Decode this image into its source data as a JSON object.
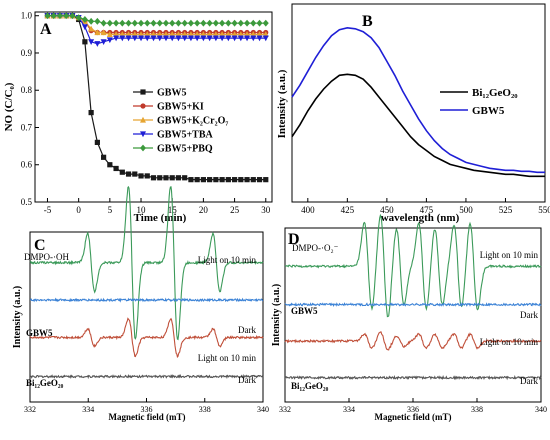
{
  "chart_data": [
    {
      "type": "line",
      "panel_label": "A",
      "title": "",
      "xlabel": "Time (min)",
      "ylabel": "NO (C/C₀)",
      "xlim": [
        -7,
        31
      ],
      "ylim": [
        0.5,
        1.01
      ],
      "xticks": [
        -5,
        0,
        5,
        10,
        15,
        20,
        25,
        30
      ],
      "yticks": [
        0.5,
        0.6,
        0.7,
        0.8,
        0.9,
        1.0
      ],
      "ytick_labels": [
        "0.5",
        "0.6",
        "0.7",
        "0.8",
        "0.9",
        "1.0"
      ],
      "legend_position": "center-right",
      "x": [
        -5,
        -4,
        -3,
        -2,
        -1,
        0,
        1,
        2,
        3,
        4,
        5,
        6,
        7,
        8,
        9,
        10,
        11,
        12,
        13,
        14,
        15,
        16,
        17,
        18,
        19,
        20,
        21,
        22,
        23,
        24,
        25,
        26,
        27,
        28,
        29,
        30
      ],
      "series": [
        {
          "name": "GBW5",
          "color": "#1a1a1a",
          "marker": "square",
          "values": [
            1.0,
            1.0,
            1.0,
            1.0,
            1.0,
            0.99,
            0.93,
            0.74,
            0.66,
            0.62,
            0.6,
            0.59,
            0.58,
            0.575,
            0.575,
            0.57,
            0.57,
            0.565,
            0.565,
            0.565,
            0.565,
            0.565,
            0.565,
            0.56,
            0.56,
            0.56,
            0.56,
            0.56,
            0.56,
            0.56,
            0.56,
            0.56,
            0.56,
            0.56,
            0.56,
            0.56
          ]
        },
        {
          "name": "GBW5+KI",
          "color": "#c0392b",
          "marker": "circle",
          "values": [
            1.0,
            1.0,
            1.0,
            1.0,
            1.0,
            0.995,
            0.985,
            0.96,
            0.955,
            0.955,
            0.955,
            0.955,
            0.955,
            0.955,
            0.955,
            0.955,
            0.955,
            0.955,
            0.955,
            0.955,
            0.955,
            0.955,
            0.955,
            0.955,
            0.955,
            0.955,
            0.955,
            0.955,
            0.955,
            0.955,
            0.955,
            0.955,
            0.955,
            0.955,
            0.955,
            0.955
          ]
        },
        {
          "name": "GBW5+K₂Cr₂O₇",
          "color": "#e6a532",
          "marker": "triangle-up",
          "values": [
            1.0,
            1.0,
            1.0,
            1.0,
            1.0,
            0.995,
            0.985,
            0.965,
            0.955,
            0.955,
            0.95,
            0.95,
            0.95,
            0.95,
            0.95,
            0.95,
            0.95,
            0.95,
            0.95,
            0.95,
            0.95,
            0.95,
            0.95,
            0.95,
            0.95,
            0.95,
            0.95,
            0.95,
            0.95,
            0.95,
            0.95,
            0.95,
            0.95,
            0.95,
            0.95,
            0.95
          ]
        },
        {
          "name": "GBW5+TBA",
          "color": "#1f1fd6",
          "marker": "triangle-down",
          "values": [
            1.0,
            1.0,
            1.0,
            1.0,
            1.0,
            0.995,
            0.97,
            0.93,
            0.925,
            0.93,
            0.935,
            0.94,
            0.94,
            0.94,
            0.94,
            0.94,
            0.94,
            0.94,
            0.94,
            0.94,
            0.94,
            0.94,
            0.94,
            0.94,
            0.94,
            0.94,
            0.94,
            0.94,
            0.94,
            0.94,
            0.94,
            0.94,
            0.94,
            0.94,
            0.94,
            0.94
          ]
        },
        {
          "name": "GBW5+PBQ",
          "color": "#3c9a3c",
          "marker": "diamond",
          "values": [
            1.0,
            1.0,
            1.0,
            1.0,
            1.0,
            0.995,
            0.99,
            0.985,
            0.985,
            0.98,
            0.98,
            0.98,
            0.98,
            0.98,
            0.98,
            0.98,
            0.98,
            0.98,
            0.98,
            0.98,
            0.98,
            0.98,
            0.98,
            0.98,
            0.98,
            0.98,
            0.98,
            0.98,
            0.98,
            0.98,
            0.98,
            0.98,
            0.98,
            0.98,
            0.98,
            0.98
          ]
        }
      ]
    },
    {
      "type": "line",
      "panel_label": "B",
      "title": "",
      "xlabel": "wavelength (nm)",
      "ylabel": "Intensity (a.u.)",
      "xlim": [
        390,
        550
      ],
      "ylim": [
        0,
        1
      ],
      "xticks": [
        400,
        425,
        450,
        475,
        500,
        525,
        550
      ],
      "y_tick_labels_shown": false,
      "legend_position": "center-right",
      "x": [
        390,
        395,
        400,
        405,
        410,
        415,
        420,
        425,
        430,
        435,
        440,
        445,
        450,
        455,
        460,
        465,
        470,
        475,
        480,
        485,
        490,
        495,
        500,
        505,
        510,
        515,
        520,
        525,
        530,
        535,
        540,
        545,
        550
      ],
      "series": [
        {
          "name": "Bi₁₂GeO₂₀",
          "color": "#000000",
          "values": [
            0.33,
            0.39,
            0.46,
            0.52,
            0.57,
            0.61,
            0.64,
            0.645,
            0.64,
            0.62,
            0.58,
            0.53,
            0.48,
            0.43,
            0.38,
            0.33,
            0.29,
            0.26,
            0.23,
            0.21,
            0.19,
            0.18,
            0.17,
            0.16,
            0.155,
            0.15,
            0.145,
            0.14,
            0.14,
            0.135,
            0.13,
            0.13,
            0.13
          ]
        },
        {
          "name": "GBW5",
          "color": "#1f1fd6",
          "values": [
            0.53,
            0.59,
            0.66,
            0.73,
            0.79,
            0.84,
            0.87,
            0.88,
            0.875,
            0.86,
            0.83,
            0.78,
            0.71,
            0.64,
            0.56,
            0.49,
            0.42,
            0.36,
            0.31,
            0.27,
            0.24,
            0.22,
            0.2,
            0.19,
            0.18,
            0.17,
            0.165,
            0.16,
            0.16,
            0.155,
            0.155,
            0.15,
            0.15
          ]
        }
      ]
    },
    {
      "type": "line",
      "panel_label": "C",
      "title": "",
      "xlabel": "Magnetic field (mT)",
      "ylabel": "Intensity (a.u.)",
      "xlim": [
        332,
        340
      ],
      "xticks": [
        332,
        334,
        336,
        338,
        340
      ],
      "spectrum_label": "DMPO-·OH",
      "series": [
        {
          "name": "GBW5 Light on 10 min",
          "color": "#3c9a5a",
          "baseline": 0.82,
          "peaks": [
            {
              "x": 334.1,
              "amp": 0.17
            },
            {
              "x": 335.5,
              "amp": 0.45
            },
            {
              "x": 336.95,
              "amp": 0.45
            },
            {
              "x": 338.4,
              "amp": 0.17
            }
          ]
        },
        {
          "name": "GBW5 Dark",
          "color": "#3b82d6",
          "baseline": 0.6,
          "peaks": []
        },
        {
          "name": "Bi₁₂GeO₂₀ Light on 10 min",
          "color": "#c0503a",
          "baseline": 0.38,
          "peaks": [
            {
              "x": 334.1,
              "amp": 0.05
            },
            {
              "x": 335.5,
              "amp": 0.11
            },
            {
              "x": 336.95,
              "amp": 0.11
            },
            {
              "x": 338.4,
              "amp": 0.05
            }
          ]
        },
        {
          "name": "Bi₁₂GeO₂₀ Dark",
          "color": "#555555",
          "baseline": 0.15,
          "peaks": []
        }
      ],
      "annotations": {
        "sample_top": "GBW5",
        "sample_bottom": "Bi₁₂GeO₂₀",
        "light": "Light on 10 min",
        "dark": "Dark"
      }
    },
    {
      "type": "line",
      "panel_label": "D",
      "title": "",
      "xlabel": "Magnetic field (mT)",
      "ylabel": "Intensity (a.u.)",
      "xlim": [
        332,
        340
      ],
      "xticks": [
        332,
        334,
        336,
        338,
        340
      ],
      "spectrum_label": "DMPO-·O₂⁻",
      "series": [
        {
          "name": "GBW5 Light on 10 min",
          "color": "#3c9a5a",
          "baseline": 0.78,
          "peaks": [
            {
              "x": 334.6,
              "amp": 0.25
            },
            {
              "x": 335.1,
              "amp": 0.3
            },
            {
              "x": 335.6,
              "amp": 0.22
            },
            {
              "x": 336.3,
              "amp": 0.25
            },
            {
              "x": 336.8,
              "amp": 0.22
            },
            {
              "x": 337.4,
              "amp": 0.24
            },
            {
              "x": 337.9,
              "amp": 0.25
            }
          ]
        },
        {
          "name": "GBW5 Dark",
          "color": "#3b82d6",
          "baseline": 0.56,
          "peaks": []
        },
        {
          "name": "Bi₁₂GeO₂₀ Light on 10 min",
          "color": "#c0503a",
          "baseline": 0.35,
          "peaks": [
            {
              "x": 334.6,
              "amp": 0.04
            },
            {
              "x": 335.1,
              "amp": 0.05
            },
            {
              "x": 335.6,
              "amp": 0.03
            },
            {
              "x": 336.3,
              "amp": 0.04
            },
            {
              "x": 336.8,
              "amp": 0.04
            },
            {
              "x": 337.4,
              "amp": 0.04
            },
            {
              "x": 337.9,
              "amp": 0.04
            }
          ]
        },
        {
          "name": "Bi₁₂GeO₂₀ Dark",
          "color": "#555555",
          "baseline": 0.14,
          "peaks": []
        }
      ],
      "annotations": {
        "sample_top": "GBW5",
        "sample_bottom": "Bi₁₂GeO₂₀",
        "light": "Light on 10 min",
        "dark": "Dark"
      }
    }
  ]
}
